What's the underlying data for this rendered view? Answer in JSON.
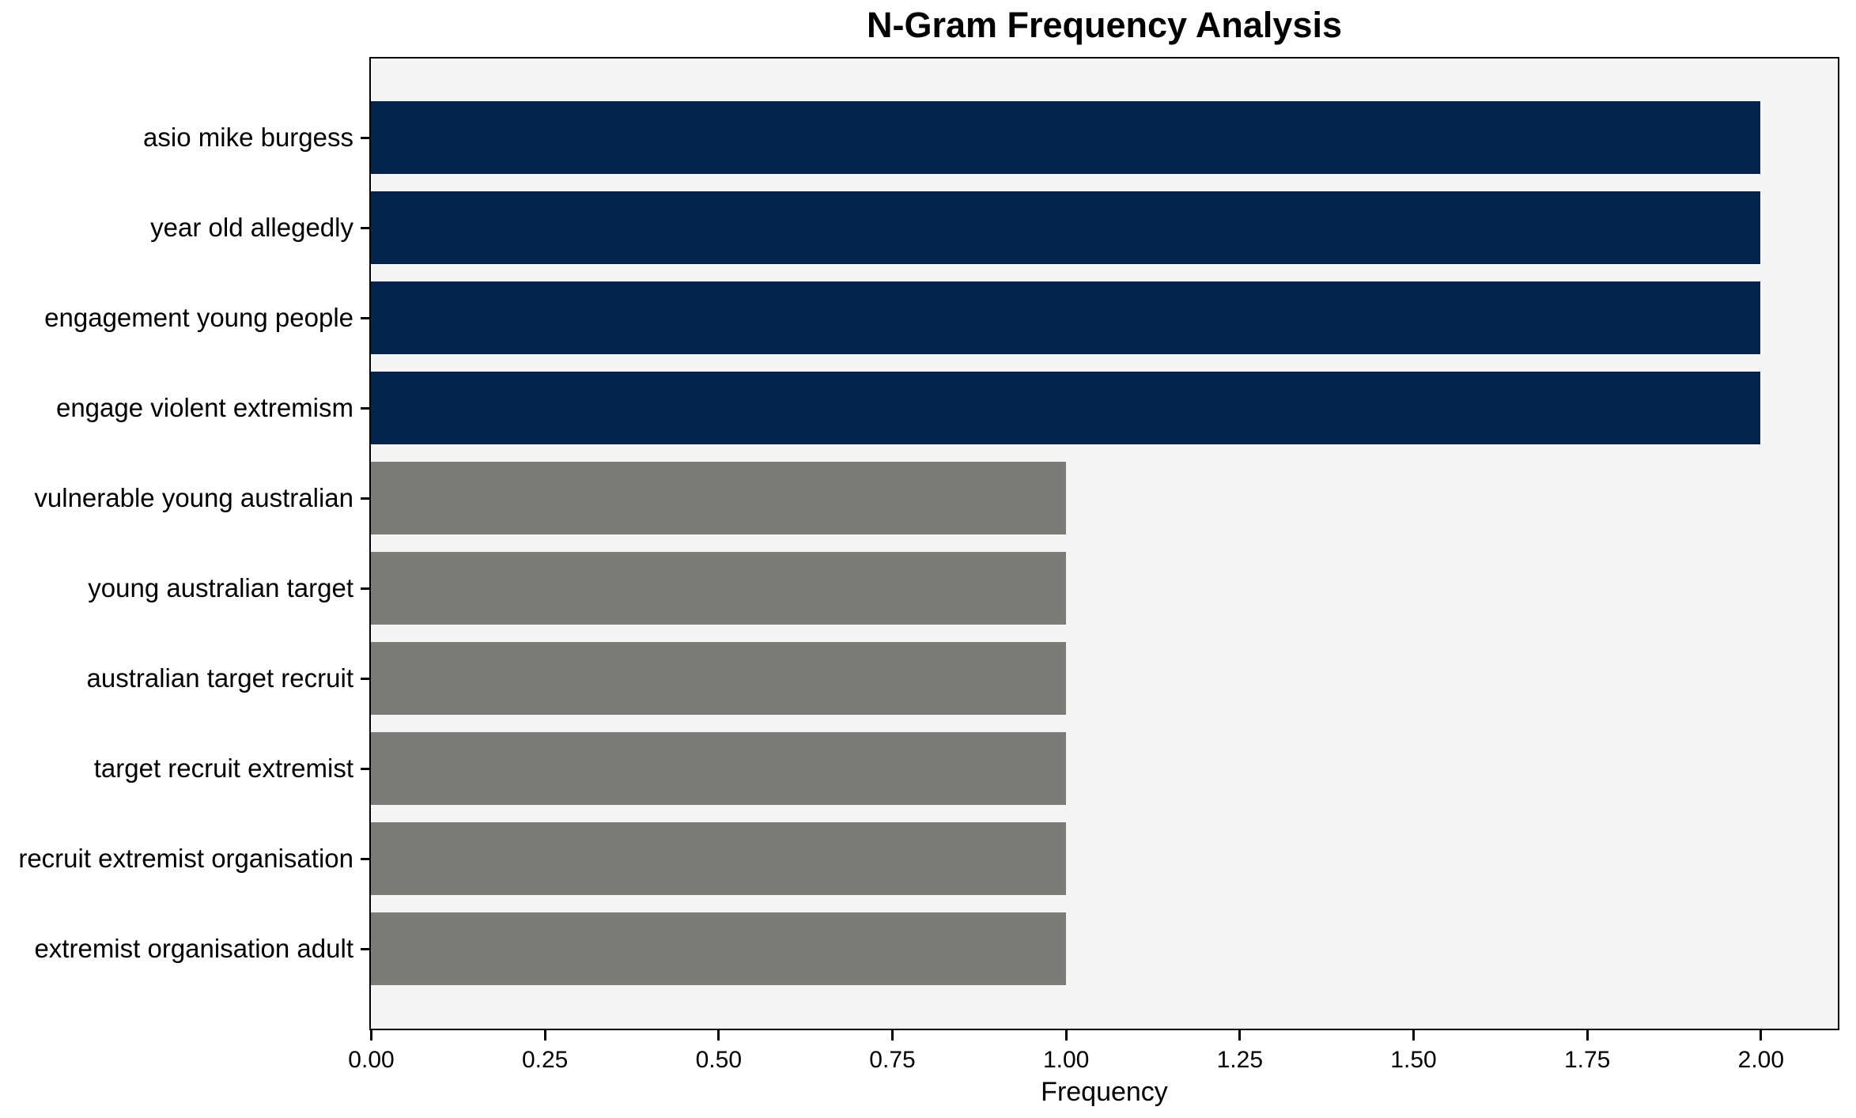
{
  "title": "N-Gram Frequency Analysis",
  "chart_data": {
    "type": "bar",
    "orientation": "horizontal",
    "title": "N-Gram Frequency Analysis",
    "xlabel": "Frequency",
    "ylabel": "",
    "categories": [
      "asio mike burgess",
      "year old allegedly",
      "engagement young people",
      "engage violent extremism",
      "vulnerable young australian",
      "young australian target",
      "australian target recruit",
      "target recruit extremist",
      "recruit extremist organisation",
      "extremist organisation adult"
    ],
    "values": [
      2,
      2,
      2,
      2,
      1,
      1,
      1,
      1,
      1,
      1
    ],
    "bar_colors": [
      "#02234C",
      "#02234C",
      "#02234C",
      "#02234C",
      "#7B7B77",
      "#7B7B77",
      "#7B7B77",
      "#7B7B77",
      "#7B7B77",
      "#7B7B77"
    ],
    "x_ticks": [
      "0.00",
      "0.25",
      "0.50",
      "0.75",
      "1.00",
      "1.25",
      "1.50",
      "1.75",
      "2.00"
    ],
    "x_tick_values": [
      0,
      0.25,
      0.5,
      0.75,
      1.0,
      1.25,
      1.5,
      1.75,
      2.0
    ],
    "xlim": [
      0,
      2.11
    ],
    "grid": false,
    "legend": null,
    "colors": {
      "highlight_bar": "#02234C",
      "default_bar": "#7B7B77",
      "plot_background": "#F5F5F5",
      "figure_background": "#FFFFFF",
      "spine": "#000000",
      "text": "#000000"
    }
  }
}
